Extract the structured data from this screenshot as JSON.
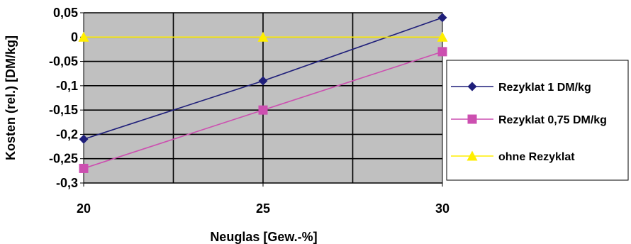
{
  "chart_data": {
    "type": "line",
    "title": "",
    "xlabel": "Neuglas [Gew.-%]",
    "ylabel": "Kosten (rel.) [DM/kg]",
    "x": [
      20,
      25,
      30
    ],
    "x_tick_labels": [
      "20",
      "25",
      "30"
    ],
    "xlim": [
      20,
      30
    ],
    "ylim": [
      -0.3,
      0.05
    ],
    "y_ticks": [
      0.05,
      0,
      -0.05,
      -0.1,
      -0.15,
      -0.2,
      -0.25,
      -0.3
    ],
    "y_tick_labels": [
      "0,05",
      "0",
      "-0,05",
      "-0,1",
      "-0,15",
      "-0,2",
      "-0,25",
      "-0,3"
    ],
    "grid": true,
    "legend_position": "right",
    "plot_background": "#c0c0c0",
    "series": [
      {
        "name": "Rezyklat 1 DM/kg",
        "values": [
          -0.21,
          -0.09,
          0.04
        ],
        "color": "#1f1f7a",
        "marker": "diamond"
      },
      {
        "name": "Rezyklat 0,75 DM/kg",
        "values": [
          -0.27,
          -0.15,
          -0.03
        ],
        "color": "#cc4fb0",
        "marker": "square"
      },
      {
        "name": "ohne Rezyklat",
        "values": [
          0,
          0,
          0
        ],
        "color": "#ffee00",
        "marker": "triangle"
      }
    ]
  }
}
